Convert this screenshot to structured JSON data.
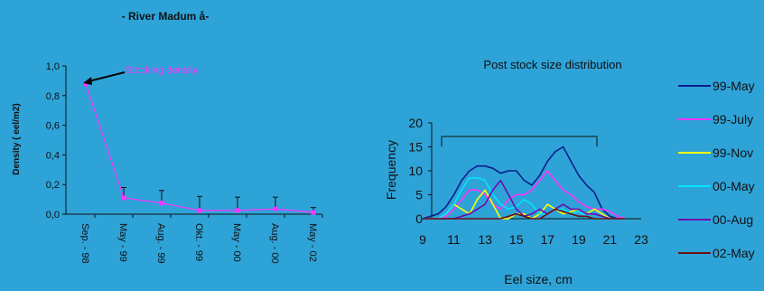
{
  "chart_data": [
    {
      "type": "line",
      "title": "- River Madum å-",
      "ylabel": "Density ( eel/m2)",
      "xlabel": "",
      "categories": [
        "Sep. - 98",
        "May - 99",
        "Aug. - 99",
        "Okt. - 99",
        "May - 00",
        "Aug. - 00",
        "May - 02"
      ],
      "values": [
        0.88,
        0.11,
        0.075,
        0.025,
        0.025,
        0.035,
        0.012
      ],
      "error_upper": [
        0.88,
        0.18,
        0.16,
        0.12,
        0.115,
        0.115,
        0.045
      ],
      "ylim": [
        0,
        1.0
      ],
      "yticks": [
        "0,0",
        "0,2",
        "0,4",
        "0,6",
        "0,8",
        "1,0"
      ],
      "annotation": "Stocking density",
      "line_color": "#ff33ff",
      "grid": false
    },
    {
      "type": "line",
      "title": "Post stock size distribution",
      "xlabel": "Eel size, cm",
      "ylabel": "Frequency",
      "xlim": [
        9,
        23
      ],
      "ylim": [
        0,
        20
      ],
      "xticks": [
        "9",
        "11",
        "13",
        "15",
        "17",
        "19",
        "21",
        "23"
      ],
      "yticks": [
        "0",
        "5",
        "10",
        "15",
        "20"
      ],
      "legend_position": "right",
      "x": [
        9,
        9.5,
        10,
        10.5,
        11,
        11.5,
        12,
        12.5,
        13,
        13.5,
        14,
        14.5,
        15,
        15.5,
        16,
        16.5,
        17,
        17.5,
        18,
        18.5,
        19,
        19.5,
        20,
        20.5,
        21,
        21.5,
        22
      ],
      "series": [
        {
          "name": "99-May",
          "color": "#0a1f8f",
          "values": [
            0,
            0.5,
            1,
            2.5,
            5,
            8,
            10,
            11,
            11,
            10.5,
            9.5,
            10,
            10,
            8,
            7,
            9,
            12,
            14,
            15,
            12,
            9,
            7,
            5.5,
            2,
            0.5,
            0,
            0
          ]
        },
        {
          "name": "99-July",
          "color": "#ff33ff",
          "values": [
            0,
            0,
            0,
            0.5,
            2,
            4,
            6,
            6,
            5,
            3,
            2,
            4,
            5,
            5,
            6,
            8,
            10,
            8,
            6,
            5,
            3.5,
            2.5,
            2,
            2,
            1.5,
            0.5,
            0
          ]
        },
        {
          "name": "99-Nov",
          "color": "#ffff00",
          "values": [
            0,
            0,
            0,
            1,
            3,
            2,
            1,
            4,
            6,
            3,
            0,
            0,
            1,
            1,
            0,
            1,
            3,
            2,
            1,
            1.5,
            2,
            1,
            2,
            1,
            0,
            0,
            0
          ]
        },
        {
          "name": "00-May",
          "color": "#00e5ff",
          "values": [
            0,
            0,
            0,
            1,
            3,
            6,
            8.5,
            8.5,
            8,
            5,
            3,
            2,
            2.5,
            4,
            3,
            1,
            1,
            2,
            2,
            1,
            1.5,
            0.5,
            0,
            0,
            0,
            0,
            0
          ]
        },
        {
          "name": "00-Aug",
          "color": "#6a0dad",
          "values": [
            0,
            0,
            0,
            0,
            0,
            0.5,
            1,
            2,
            3,
            6,
            8,
            5,
            2,
            0.5,
            1,
            2,
            1,
            2,
            3,
            2,
            2,
            1,
            1,
            0.5,
            0,
            0,
            0
          ]
        },
        {
          "name": "02-May",
          "color": "#6b1010",
          "values": [
            0,
            0,
            0,
            0,
            0,
            0,
            0,
            0,
            0,
            0,
            0,
            0.5,
            1,
            0.5,
            0,
            0,
            1,
            2,
            1.5,
            1,
            0.5,
            0.5,
            0,
            0,
            0,
            0,
            0
          ]
        }
      ]
    }
  ]
}
